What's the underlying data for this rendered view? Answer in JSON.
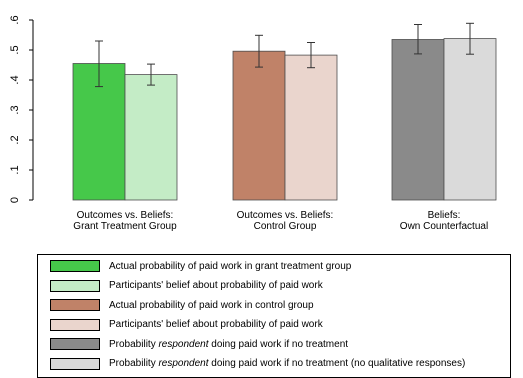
{
  "chart_data": {
    "type": "bar",
    "ylim": [
      0,
      0.6
    ],
    "yticks": [
      0,
      0.1,
      0.2,
      0.3,
      0.4,
      0.5,
      0.6
    ],
    "ytick_labels": [
      "0",
      ".1",
      ".2",
      ".3",
      ".4",
      ".5",
      ".6"
    ],
    "grid": false,
    "legend_position": "bottom",
    "groups": [
      {
        "label": [
          "Outcomes vs. Beliefs:",
          "Grant Treatment Group"
        ],
        "bars": [
          {
            "series": 0,
            "value": 0.455,
            "ci": [
              0.378,
              0.53
            ]
          },
          {
            "series": 1,
            "value": 0.418,
            "ci": [
              0.383,
              0.453
            ]
          }
        ]
      },
      {
        "label": [
          "Outcomes vs. Beliefs:",
          "Control Group"
        ],
        "bars": [
          {
            "series": 2,
            "value": 0.496,
            "ci": [
              0.443,
              0.549
            ]
          },
          {
            "series": 3,
            "value": 0.483,
            "ci": [
              0.441,
              0.525
            ]
          }
        ]
      },
      {
        "label": [
          "Beliefs:",
          "Own Counterfactual"
        ],
        "bars": [
          {
            "series": 4,
            "value": 0.535,
            "ci": [
              0.487,
              0.585
            ]
          },
          {
            "series": 5,
            "value": 0.538,
            "ci": [
              0.486,
              0.589
            ]
          }
        ]
      }
    ],
    "series": [
      {
        "name_parts": [
          {
            "text": "Actual probability of paid work in grant treatment group",
            "italic": false
          }
        ],
        "color": "#46c84a"
      },
      {
        "name_parts": [
          {
            "text": "Participants' belief about probability of paid work",
            "italic": false
          }
        ],
        "color": "#c4ecc6"
      },
      {
        "name_parts": [
          {
            "text": "Actual probability of paid work in control group",
            "italic": false
          }
        ],
        "color": "#c08268"
      },
      {
        "name_parts": [
          {
            "text": "Participants' belief about probability of paid work",
            "italic": false
          }
        ],
        "color": "#ead5cd"
      },
      {
        "name_parts": [
          {
            "text": "Probability ",
            "italic": false
          },
          {
            "text": "respondent",
            "italic": true
          },
          {
            "text": " doing paid work if no treatment",
            "italic": false
          }
        ],
        "color": "#8a8a8a"
      },
      {
        "name_parts": [
          {
            "text": "Probability ",
            "italic": false
          },
          {
            "text": "respondent",
            "italic": true
          },
          {
            "text": " doing paid work if no treatment (no qualitative responses)",
            "italic": false
          }
        ],
        "color": "#dadada"
      }
    ]
  }
}
